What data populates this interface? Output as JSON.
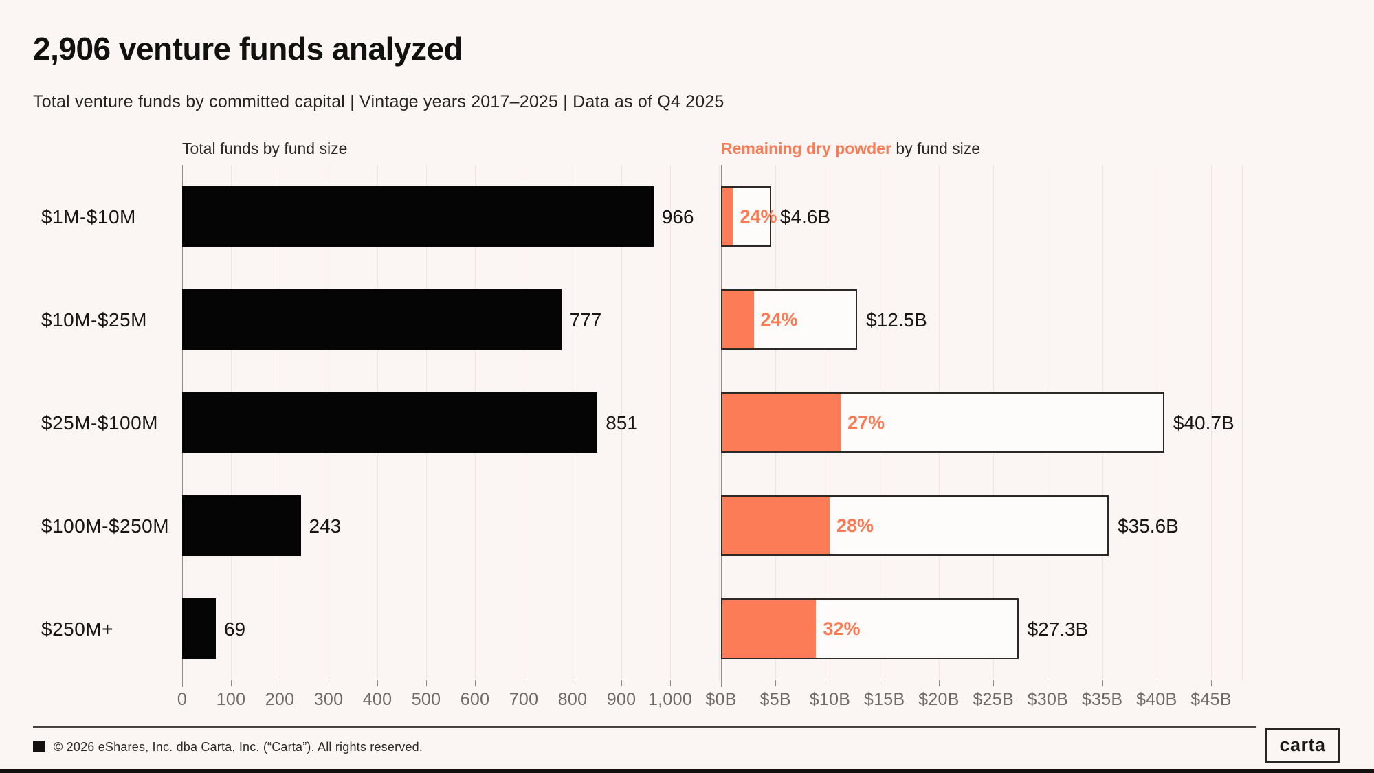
{
  "header": {
    "title": "2,906 venture funds analyzed",
    "subtitle": "Total venture funds by committed capital | Vintage years 2017–2025 | Data as of Q4 2025"
  },
  "chart_data": {
    "type": "bar",
    "orientation": "horizontal",
    "categories": [
      "$1M-$10M",
      "$10M-$25M",
      "$25M-$100M",
      "$100M-$250M",
      "$250M+"
    ],
    "left_chart": {
      "title": "Total funds by fund size",
      "series_name": "Total funds",
      "values": [
        966,
        777,
        851,
        243,
        69
      ],
      "value_labels": [
        "966",
        "777",
        "851",
        "243",
        "69"
      ],
      "xlim": [
        0,
        1100
      ],
      "tick_values": [
        0,
        100,
        200,
        300,
        400,
        500,
        600,
        700,
        800,
        900,
        1000
      ],
      "tick_labels": [
        "0",
        "100",
        "200",
        "300",
        "400",
        "500",
        "600",
        "700",
        "800",
        "900",
        "1,000"
      ],
      "bar_color": "#050505",
      "grid": true
    },
    "right_chart": {
      "title_highlight": "Remaining dry powder",
      "title_rest": " by fund size",
      "total_committed_billions": [
        4.6,
        12.5,
        40.7,
        35.6,
        27.3
      ],
      "total_labels": [
        "$4.6B",
        "$12.5B",
        "$40.7B",
        "$35.6B",
        "$27.3B"
      ],
      "dry_powder_pct": [
        24,
        24,
        27,
        28,
        32
      ],
      "pct_labels": [
        "24%",
        "24%",
        "27%",
        "28%",
        "32%"
      ],
      "xlim": [
        0,
        47.9
      ],
      "tick_values": [
        0,
        5,
        10,
        15,
        20,
        25,
        30,
        35,
        40,
        45
      ],
      "tick_labels": [
        "$0B",
        "$5B",
        "$10B",
        "$15B",
        "$20B",
        "$25B",
        "$30B",
        "$35B",
        "$40B",
        "$45B"
      ],
      "fill_color": "#FB7C57",
      "outline_color": "#2B2826",
      "bar_face_color": "#FDFCFB",
      "grid": true
    }
  },
  "colors": {
    "background": "#FBF6F4",
    "accent_orange": "#F87B55",
    "bar_black": "#050505",
    "gridline": "#EDE6E4",
    "tick_text": "#6E6A67"
  },
  "footer": {
    "copyright": "© 2026 eShares, Inc. dba Carta, Inc. (“Carta”). All rights reserved.",
    "logo": "carta"
  }
}
